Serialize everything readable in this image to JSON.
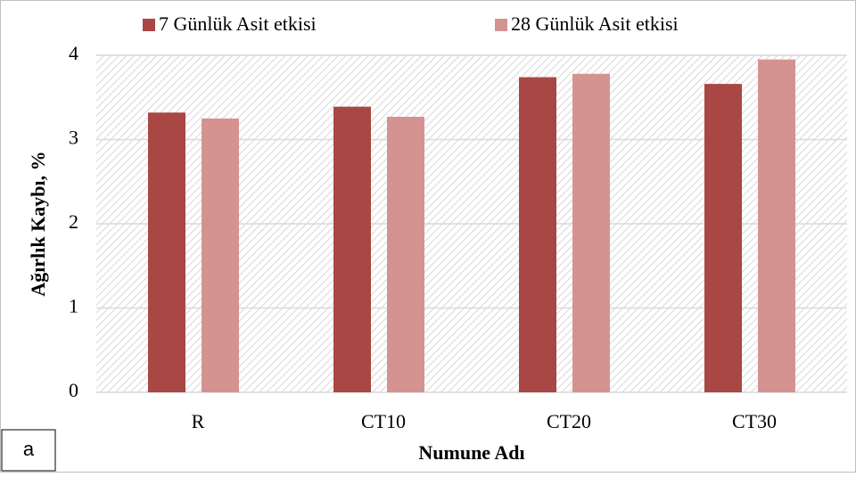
{
  "chart_data": {
    "type": "bar",
    "categories": [
      "R",
      "CT10",
      "CT20",
      "CT30"
    ],
    "series": [
      {
        "name": "7 Günlük Asit etkisi",
        "color": "#a84744",
        "values": [
          3.32,
          3.39,
          3.74,
          3.66
        ]
      },
      {
        "name": "28 Günlük Asit etkisi",
        "color": "#d49391",
        "values": [
          3.25,
          3.27,
          3.78,
          3.95
        ]
      }
    ],
    "ylim": [
      0,
      4
    ],
    "yticks": [
      0,
      1,
      2,
      3,
      4
    ],
    "grid": true,
    "xlabel": "Numune Adı",
    "ylabel": "Ağırlık Kaybı, %",
    "legend": "top",
    "annotation": "a"
  }
}
